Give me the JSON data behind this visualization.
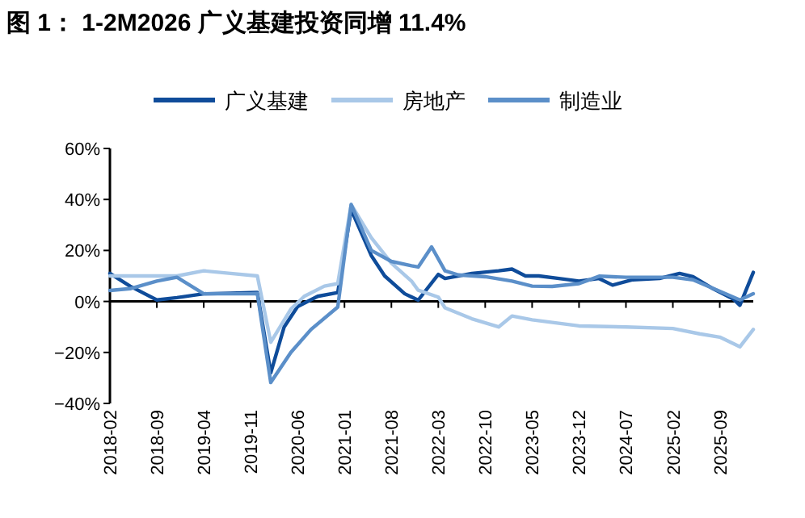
{
  "chart_data": {
    "type": "line",
    "title": "图 1： 1-2M2026 广义基建投资同增 11.4%",
    "xlim": [
      "2018-02",
      "2026-02"
    ],
    "xticks": [
      {
        "value": "2018-02",
        "label": "2018-02"
      },
      {
        "value": "2018-09",
        "label": "2018-09"
      },
      {
        "value": "2019-04",
        "label": "2019-04"
      },
      {
        "value": "2019-11",
        "label": "2019-11"
      },
      {
        "value": "2020-06",
        "label": "2020-06"
      },
      {
        "value": "2021-01",
        "label": "2021-01"
      },
      {
        "value": "2021-08",
        "label": "2021-08"
      },
      {
        "value": "2022-03",
        "label": "2022-03"
      },
      {
        "value": "2022-10",
        "label": "2022-10"
      },
      {
        "value": "2023-05",
        "label": "2023-05"
      },
      {
        "value": "2023-12",
        "label": "2023-12"
      },
      {
        "value": "2024-07",
        "label": "2024-07"
      },
      {
        "value": "2025-02",
        "label": "2025-02"
      },
      {
        "value": "2025-09",
        "label": "2025-09"
      }
    ],
    "ylim": [
      -40,
      60
    ],
    "yticks": [
      {
        "value": -40,
        "label": "−40%"
      },
      {
        "value": -20,
        "label": "−20%"
      },
      {
        "value": 0,
        "label": "0%"
      },
      {
        "value": 20,
        "label": "20%"
      },
      {
        "value": 40,
        "label": "40%"
      },
      {
        "value": 60,
        "label": "60%"
      }
    ],
    "legend": "top",
    "line_style": "solid",
    "marker": "none",
    "series": [
      {
        "name": "广义基建",
        "color": "#0f4c9a",
        "x": [
          "2018-02",
          "2018-05",
          "2018-09",
          "2018-12",
          "2019-04",
          "2019-08",
          "2019-12",
          "2020-02",
          "2020-04",
          "2020-06",
          "2020-09",
          "2020-12",
          "2021-02",
          "2021-05",
          "2021-07",
          "2021-10",
          "2021-12",
          "2022-03",
          "2022-04",
          "2022-08",
          "2022-12",
          "2023-02",
          "2023-04",
          "2023-06",
          "2023-09",
          "2023-12",
          "2024-03",
          "2024-05",
          "2024-08",
          "2024-12",
          "2025-03",
          "2025-05",
          "2025-08",
          "2025-11",
          "2025-12",
          "2026-02"
        ],
        "values": [
          11,
          6,
          0.6,
          1.5,
          3,
          3.2,
          3.5,
          -28,
          -10,
          -2,
          2,
          3.5,
          36,
          18,
          10,
          3,
          0.5,
          10.6,
          9,
          11,
          12,
          12.7,
          10,
          10,
          9,
          8,
          9,
          6.4,
          8.5,
          9,
          11,
          9.7,
          5,
          1,
          -1.5,
          11.4
        ]
      },
      {
        "name": "房地产",
        "color": "#a9c8e8",
        "x": [
          "2018-02",
          "2018-06",
          "2018-12",
          "2019-04",
          "2019-08",
          "2019-12",
          "2020-02",
          "2020-05",
          "2020-07",
          "2020-10",
          "2020-12",
          "2021-02",
          "2021-05",
          "2021-08",
          "2021-11",
          "2021-12",
          "2022-03",
          "2022-04",
          "2022-08",
          "2022-12",
          "2023-02",
          "2023-05",
          "2023-12",
          "2024-07",
          "2025-02",
          "2025-06",
          "2025-09",
          "2025-12",
          "2026-02"
        ],
        "values": [
          10,
          10,
          10,
          12,
          11,
          10,
          -16,
          -3,
          2,
          6,
          7,
          38,
          25,
          15,
          8,
          4.4,
          1.7,
          -2.5,
          -6.8,
          -10,
          -5.7,
          -7.2,
          -9.6,
          -10,
          -10.6,
          -12.7,
          -14,
          -17.8,
          -11
        ]
      },
      {
        "name": "制造业",
        "color": "#5b8fc9",
        "x": [
          "2018-02",
          "2018-05",
          "2018-09",
          "2018-12",
          "2019-04",
          "2019-11",
          "2019-12",
          "2020-02",
          "2020-05",
          "2020-08",
          "2020-12",
          "2021-02",
          "2021-05",
          "2021-08",
          "2021-11",
          "2021-12",
          "2022-02",
          "2022-04",
          "2022-06",
          "2022-10",
          "2023-02",
          "2023-05",
          "2023-08",
          "2023-12",
          "2024-03",
          "2024-07",
          "2025-02",
          "2025-05",
          "2025-09",
          "2025-12",
          "2026-02"
        ],
        "values": [
          4.3,
          5,
          8,
          9.5,
          3,
          3,
          3.1,
          -31.8,
          -20,
          -11,
          -2.2,
          38,
          20,
          15.7,
          14,
          13.5,
          21.4,
          12,
          10.4,
          9.7,
          8,
          6,
          5.9,
          7,
          9.9,
          9.5,
          9.5,
          8.5,
          4,
          0.6,
          3
        ]
      }
    ]
  }
}
